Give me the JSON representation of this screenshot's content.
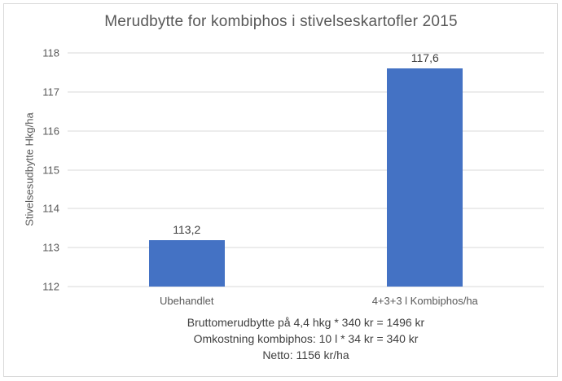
{
  "chart_data": {
    "type": "bar",
    "title": "Merudbytte for kombiphos i stivelseskartofler 2015",
    "categories": [
      "Ubehandlet",
      "4+3+3 l Kombiphos/ha"
    ],
    "values": [
      113.2,
      117.6
    ],
    "data_labels": [
      "113,2",
      "117,6"
    ],
    "xlabel": "",
    "ylabel": "Stivelsesudbytte Hkg/ha",
    "ylim": [
      112,
      118
    ],
    "yticks": [
      112,
      113,
      114,
      115,
      116,
      117,
      118
    ],
    "grid": true,
    "legend": false,
    "bar_color": "#4472C4",
    "annotations": [
      "Bruttomerudbytte på 4,4 hkg * 340 kr = 1496 kr",
      "Omkostning kombiphos: 10 l * 34 kr = 340 kr",
      "Netto: 1156 kr/ha"
    ]
  },
  "colors": {
    "bar": "#4472C4",
    "gridline": "#D9D9D9",
    "border": "#D9D9D9",
    "axis_text": "#595959",
    "label_text": "#404040"
  }
}
